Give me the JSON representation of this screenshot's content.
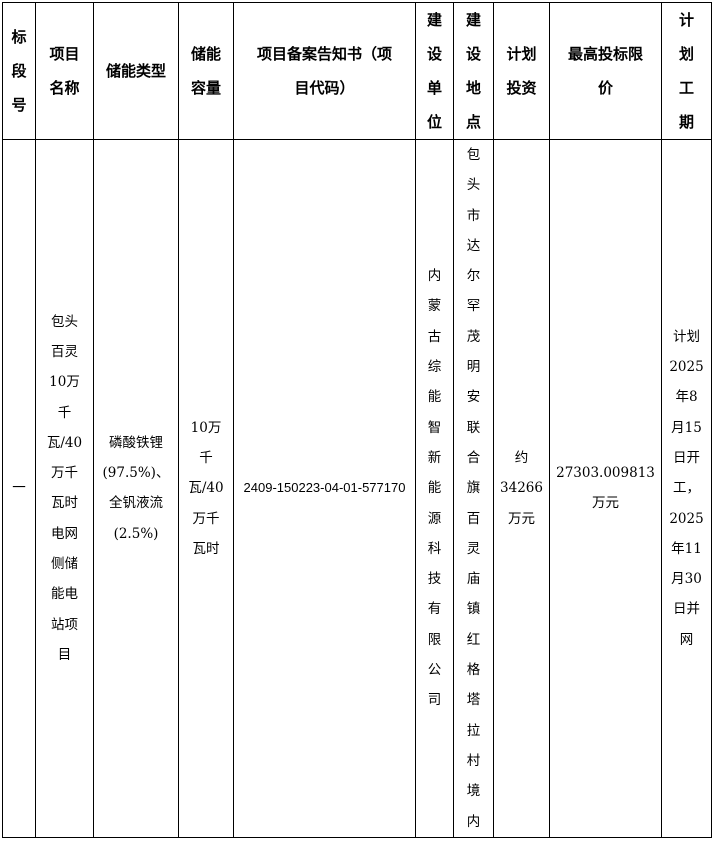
{
  "table": {
    "headers": [
      "标\n段\n号",
      "项目\n名称",
      "储能类型",
      "储能\n容量",
      "项目备案告知书（项\n目代码）",
      "建\n设\n单\n位",
      "建\n设\n地\n点",
      "计划\n投资",
      "最高投标限\n价",
      "计\n划\n工\n期"
    ],
    "rows": [
      {
        "section_no": "一",
        "project_name": "包头\n百灵\n10万\n千\n瓦/40\n万千\n瓦时\n电网\n侧储\n能电\n站项\n目",
        "storage_type": "磷酸铁锂\n(97.5%)、\n全钒液流\n(2.5%)",
        "capacity": "10万\n千\n瓦/40\n万千\n瓦时",
        "project_code": "2409-150223-04-01-577170",
        "builder": "内\n蒙\n古\n综\n能\n智\n新\n能\n源\n科\n技\n有\n限\n公\n司",
        "location": "包\n头\n市\n达\n尔\n罕\n茂\n明\n安\n联\n合\n旗\n百\n灵\n庙\n镇\n红\n格\n塔\n拉\n村\n境\n内",
        "investment": "约\n34266\n万元",
        "max_bid_price": "27303.009813\n万元",
        "schedule": "计划\n2025\n年8\n月15\n日开\n工，\n2025\n年11\n月30\n日并\n网"
      }
    ]
  }
}
